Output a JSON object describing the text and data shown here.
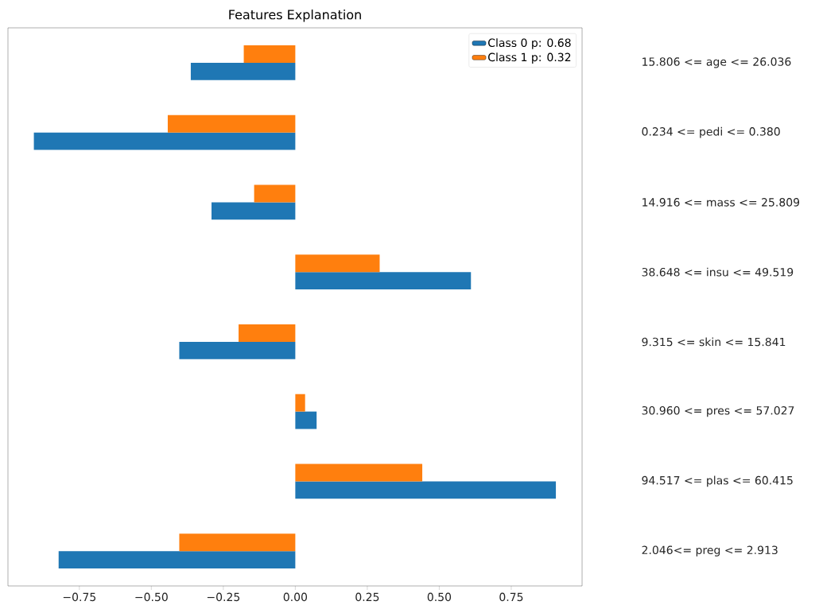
{
  "chart_data": {
    "type": "bar",
    "orientation": "horizontal",
    "title": "Features Explanation",
    "categories": [
      "15.806 <= age <= 26.036",
      "0.234 <= pedi <= 0.380",
      "14.916 <= mass <= 25.809",
      "38.648 <= insu <= 49.519",
      "9.315 <= skin <= 15.841",
      "30.960 <= pres <= 57.027",
      "94.517 <= plas <= 60.415",
      "2.046<= preg <= 2.913"
    ],
    "series": [
      {
        "name": "Class 0 p: 0.68",
        "color": "#1f77b4",
        "values": [
          -0.363,
          -0.908,
          -0.291,
          0.61,
          -0.403,
          0.074,
          0.905,
          -0.822
        ]
      },
      {
        "name": "Class 1 p: 0.32",
        "color": "#ff7f0e",
        "values": [
          -0.179,
          -0.443,
          -0.143,
          0.293,
          -0.197,
          0.034,
          0.441,
          -0.403
        ]
      }
    ],
    "xlim": [
      -0.998,
      0.996
    ],
    "xticks": [
      {
        "value": -0.75,
        "label": "−0.75"
      },
      {
        "value": -0.5,
        "label": "−0.50"
      },
      {
        "value": -0.25,
        "label": "−0.25"
      },
      {
        "value": 0,
        "label": "0.00"
      },
      {
        "value": 0.25,
        "label": "0.25"
      },
      {
        "value": 0.5,
        "label": "0.50"
      },
      {
        "value": 0.75,
        "label": "0.75"
      }
    ],
    "grid": false,
    "legend": "top right"
  }
}
